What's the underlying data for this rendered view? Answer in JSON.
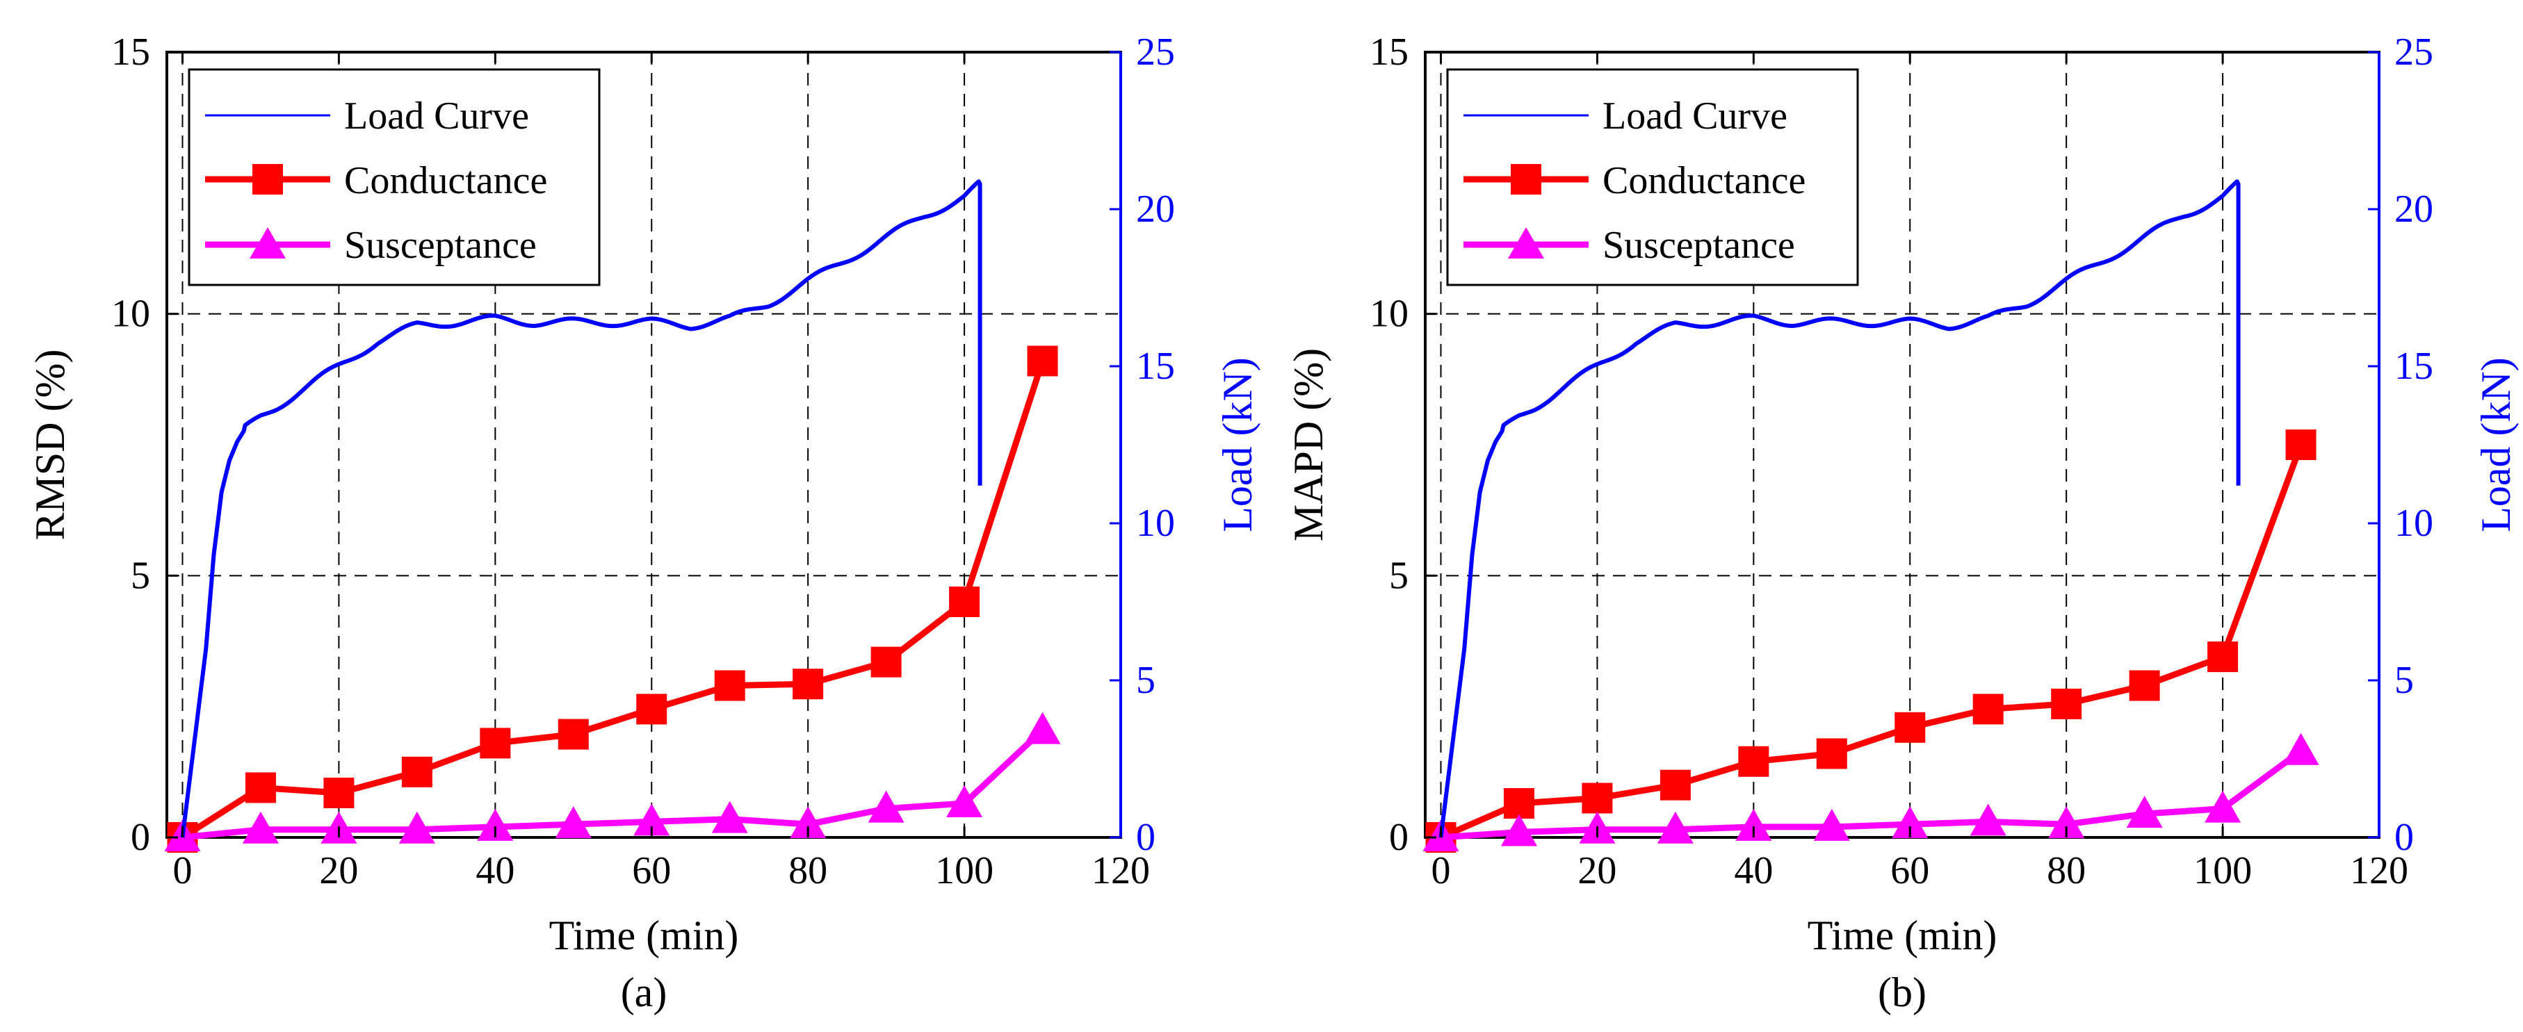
{
  "colors": {
    "load": "#0000FF",
    "conductance": "#FF0000",
    "susceptance": "#FF00FF",
    "axis": "#000000",
    "grid": "#000000"
  },
  "chart_data": [
    {
      "type": "line",
      "panel": "(a)",
      "xlabel": "Time (min)",
      "ylabel": "RMSD (%)",
      "y2label": "Load (kN)",
      "xlim": [
        -2,
        120
      ],
      "ylim": [
        0,
        15
      ],
      "y2lim": [
        0,
        25
      ],
      "xticks": [
        0,
        20,
        40,
        60,
        80,
        100,
        120
      ],
      "yticks": [
        0,
        5,
        10,
        15
      ],
      "y2ticks": [
        0,
        5,
        10,
        15,
        20,
        25
      ],
      "grid": true,
      "legend": {
        "position": "top-left",
        "entries": [
          "Load Curve",
          "Conductance",
          "Susceptance"
        ]
      },
      "series": [
        {
          "name": "Conductance",
          "axis": "left",
          "marker": "square",
          "x": [
            0,
            10,
            20,
            30,
            40,
            50,
            60,
            70,
            80,
            90,
            100,
            110
          ],
          "values": [
            0.0,
            0.95,
            0.85,
            1.25,
            1.8,
            1.97,
            2.45,
            2.9,
            2.93,
            3.35,
            4.5,
            9.1
          ]
        },
        {
          "name": "Susceptance",
          "axis": "left",
          "marker": "triangle",
          "x": [
            0,
            10,
            20,
            30,
            40,
            50,
            60,
            70,
            80,
            90,
            100,
            110
          ],
          "values": [
            0.0,
            0.15,
            0.15,
            0.15,
            0.2,
            0.25,
            0.3,
            0.35,
            0.25,
            0.55,
            0.65,
            2.05
          ]
        },
        {
          "name": "Load Curve",
          "axis": "right",
          "marker": "none",
          "x": [
            0,
            1,
            2,
            3,
            4,
            5,
            6,
            7,
            8,
            10,
            12,
            15,
            20,
            25,
            30,
            35,
            40,
            45,
            50,
            55,
            60,
            65,
            70,
            75,
            80,
            85,
            90,
            95,
            100,
            102,
            102
          ],
          "values": [
            0,
            2,
            4,
            6,
            9,
            11,
            12,
            12.6,
            13,
            13.4,
            13.7,
            14.2,
            15.0,
            15.8,
            16.3,
            16.4,
            16.5,
            16.4,
            16.4,
            16.4,
            16.4,
            16.3,
            16.5,
            17.0,
            17.7,
            18.4,
            19.1,
            19.8,
            20.4,
            20.8,
            11.2
          ]
        }
      ]
    },
    {
      "type": "line",
      "panel": "(b)",
      "xlabel": "Time (min)",
      "ylabel": "MAPD (%)",
      "y2label": "Load (kN)",
      "xlim": [
        -2,
        120
      ],
      "ylim": [
        0,
        15
      ],
      "y2lim": [
        0,
        25
      ],
      "xticks": [
        0,
        20,
        40,
        60,
        80,
        100,
        120
      ],
      "yticks": [
        0,
        5,
        10,
        15
      ],
      "y2ticks": [
        0,
        5,
        10,
        15,
        20,
        25
      ],
      "grid": true,
      "legend": {
        "position": "top-left",
        "entries": [
          "Load Curve",
          "Conductance",
          "Susceptance"
        ]
      },
      "series": [
        {
          "name": "Conductance",
          "axis": "left",
          "marker": "square",
          "x": [
            0,
            10,
            20,
            30,
            40,
            50,
            60,
            70,
            80,
            90,
            100,
            110
          ],
          "values": [
            0.0,
            0.65,
            0.75,
            1.0,
            1.45,
            1.6,
            2.1,
            2.45,
            2.55,
            2.9,
            3.45,
            7.5
          ]
        },
        {
          "name": "Susceptance",
          "axis": "left",
          "marker": "triangle",
          "x": [
            0,
            10,
            20,
            30,
            40,
            50,
            60,
            70,
            80,
            90,
            100,
            110
          ],
          "values": [
            0.0,
            0.1,
            0.15,
            0.15,
            0.2,
            0.2,
            0.25,
            0.3,
            0.25,
            0.45,
            0.55,
            1.65
          ]
        },
        {
          "name": "Load Curve",
          "axis": "right",
          "marker": "none",
          "x": [
            0,
            1,
            2,
            3,
            4,
            5,
            6,
            7,
            8,
            10,
            12,
            15,
            20,
            25,
            30,
            35,
            40,
            45,
            50,
            55,
            60,
            65,
            70,
            75,
            80,
            85,
            90,
            95,
            100,
            102,
            102
          ],
          "values": [
            0,
            2,
            4,
            6,
            9,
            11,
            12,
            12.6,
            13,
            13.4,
            13.7,
            14.2,
            15.0,
            15.8,
            16.3,
            16.4,
            16.5,
            16.4,
            16.4,
            16.4,
            16.4,
            16.3,
            16.5,
            17.0,
            17.7,
            18.4,
            19.1,
            19.8,
            20.4,
            20.8,
            11.2
          ]
        }
      ]
    }
  ]
}
